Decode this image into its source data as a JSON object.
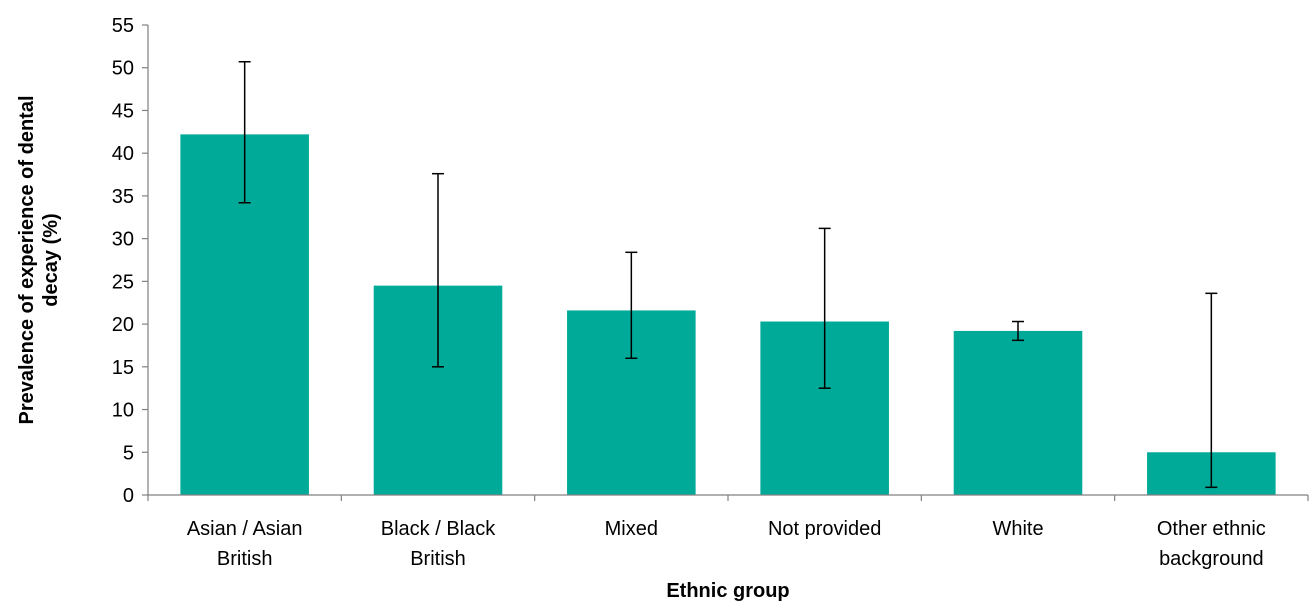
{
  "chart_data": {
    "type": "bar",
    "title": "",
    "xlabel": "Ethnic group",
    "ylabel_lines": [
      "Prevalence of experience of dental",
      "decay (%)"
    ],
    "categories": [
      [
        "Asian / Asian",
        "British"
      ],
      [
        "Black / Black",
        "British"
      ],
      [
        "Mixed"
      ],
      [
        "Not provided"
      ],
      [
        "White"
      ],
      [
        "Other ethnic",
        "background"
      ]
    ],
    "values": [
      42.2,
      24.5,
      21.6,
      20.3,
      19.2,
      5.0
    ],
    "error_low": [
      34.2,
      15.0,
      16.0,
      12.5,
      18.1,
      0.9
    ],
    "error_high": [
      50.7,
      37.6,
      28.4,
      31.2,
      20.3,
      23.6
    ],
    "ylim": [
      0,
      55
    ],
    "yticks": [
      0,
      5,
      10,
      15,
      20,
      25,
      30,
      35,
      40,
      45,
      50,
      55
    ],
    "bar_color": "#00AA99",
    "grid": false,
    "legend": "none"
  }
}
